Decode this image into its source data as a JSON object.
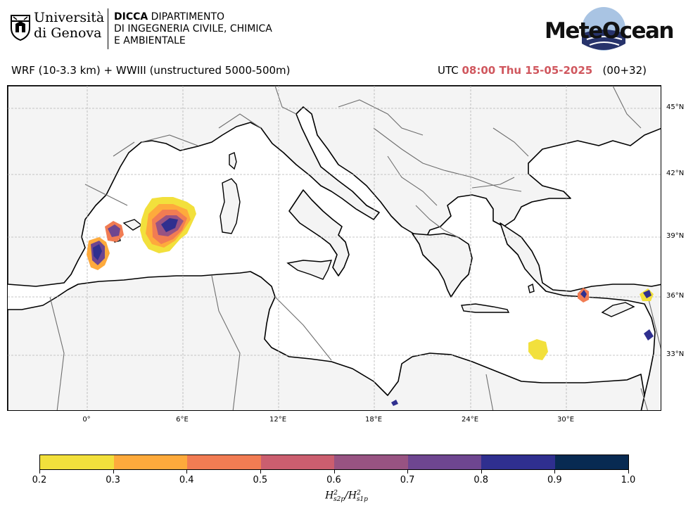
{
  "header": {
    "university_line1": "Università",
    "university_line2": "di Genova",
    "dept_abbr": "DICCA",
    "dept_line1": "DIPARTIMENTO",
    "dept_line2": "DI INGEGNERIA CIVILE, CHIMICA",
    "dept_line3": "E AMBIENTALE",
    "brand": "MeteOcean"
  },
  "title": {
    "model": "WRF (10-3.3 km) + WWIII (unstructured 5000-500m)",
    "utc_prefix": "UTC",
    "datetime": "08:00 Thu 15-05-2025",
    "run": "(00+32)"
  },
  "map": {
    "lat_labels": [
      "45°N",
      "42°N",
      "39°N",
      "36°N",
      "33°N"
    ],
    "lon_labels": [
      "0°",
      "6°E",
      "12°E",
      "18°E",
      "24°E",
      "30°E"
    ],
    "colors": {
      "sea": "#ffffff",
      "land": "#f4f4f4",
      "coast": "#000000",
      "border": "#6e6e6e",
      "grid": "#b5b5b5"
    }
  },
  "colorbar": {
    "ticks": [
      "0.2",
      "0.3",
      "0.4",
      "0.5",
      "0.6",
      "0.7",
      "0.8",
      "0.9",
      "1.0"
    ],
    "colors": [
      "#f2e03c",
      "#feaa3c",
      "#f17c53",
      "#cb5e6f",
      "#985382",
      "#6e4690",
      "#2f2f8f",
      "#082a52"
    ],
    "label_symbol": "H",
    "label_exp": "2",
    "label_sub_num": "s2p",
    "label_sub_den": "s1p"
  }
}
